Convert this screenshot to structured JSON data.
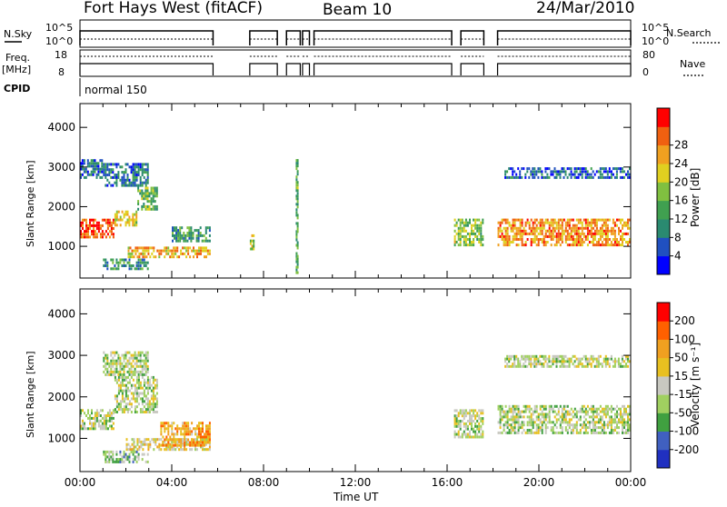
{
  "header": {
    "title": "Fort Hays West (fitACF)",
    "beam": "Beam 10",
    "date": "24/Mar/2010"
  },
  "summary_panels": {
    "nsky_label": "N.Sky",
    "nsky_top": "10^5",
    "nsky_bottom": "10^0",
    "nsearch_label": "N.Search",
    "nsearch_top": "10^5",
    "nsearch_bottom": "10^0",
    "freq_label_1": "Freq.",
    "freq_label_2": "[MHz]",
    "freq_top": "18",
    "freq_bottom": "8",
    "nave_label": "Nave",
    "nave_top": "80",
    "nave_bottom": "0",
    "cpid_label": "CPID",
    "cpid_value": "normal 150"
  },
  "colors": {
    "power_scale": [
      "#0000ff",
      "#2050c0",
      "#2a8a70",
      "#40a050",
      "#80c040",
      "#e0d020",
      "#f0a020",
      "#f06010",
      "#ff0000"
    ],
    "velocity_scale": [
      "#2030c0",
      "#4060c0",
      "#40a040",
      "#a0d060",
      "#c8c8c0",
      "#e8c020",
      "#f0a020",
      "#ff6000",
      "#ff0000"
    ]
  },
  "chart_data": [
    {
      "type": "heatmap",
      "name_ref": "power",
      "ylabel": "Slant Range [km]",
      "xlabel": "",
      "xlim": [
        0,
        24
      ],
      "ylim": [
        200,
        4600
      ],
      "yticks": [
        "1000",
        "2000",
        "3000",
        "4000"
      ],
      "colorbar_label": "Power [dB]",
      "colorbar_ticks": [
        "4",
        "8",
        "12",
        "16",
        "20",
        "24",
        "28"
      ],
      "colorbar_range": [
        0,
        32
      ],
      "regions": [
        {
          "t0": 0.0,
          "t1": 1.5,
          "r0": 1200,
          "r1": 1700,
          "level": 0.85
        },
        {
          "t0": 1.5,
          "t1": 2.5,
          "r0": 1500,
          "r1": 1900,
          "level": 0.6
        },
        {
          "t0": 2.5,
          "t1": 3.4,
          "r0": 1900,
          "r1": 2500,
          "level": 0.45
        },
        {
          "t0": 0.0,
          "t1": 1.0,
          "r0": 2700,
          "r1": 3200,
          "level": 0.2
        },
        {
          "t0": 1.0,
          "t1": 3.0,
          "r0": 2500,
          "r1": 3100,
          "level": 0.25
        },
        {
          "t0": 2.0,
          "t1": 5.7,
          "r0": 700,
          "r1": 1000,
          "level": 0.7
        },
        {
          "t0": 4.0,
          "t1": 5.7,
          "r0": 1100,
          "r1": 1500,
          "level": 0.35
        },
        {
          "t0": 1.0,
          "t1": 3.0,
          "r0": 400,
          "r1": 700,
          "level": 0.3
        },
        {
          "t0": 7.4,
          "t1": 7.6,
          "r0": 900,
          "r1": 1300,
          "level": 0.55
        },
        {
          "t0": 9.4,
          "t1": 9.5,
          "r0": 300,
          "r1": 3200,
          "level": 0.4
        },
        {
          "t0": 18.2,
          "t1": 24.0,
          "r0": 1000,
          "r1": 1700,
          "level": 0.75
        },
        {
          "t0": 18.5,
          "t1": 24.0,
          "r0": 2700,
          "r1": 3000,
          "level": 0.2
        },
        {
          "t0": 16.3,
          "t1": 17.6,
          "r0": 1000,
          "r1": 1700,
          "level": 0.5
        }
      ]
    },
    {
      "type": "heatmap",
      "name_ref": "velocity",
      "ylabel": "Slant Range [km]",
      "xlabel": "Time UT",
      "xlim": [
        0,
        24
      ],
      "ylim": [
        200,
        4600
      ],
      "xticks": [
        "00:00",
        "04:00",
        "08:00",
        "12:00",
        "16:00",
        "20:00",
        "00:00"
      ],
      "yticks": [
        "1000",
        "2000",
        "3000",
        "4000"
      ],
      "colorbar_label": "Velocity [m s⁻¹]",
      "colorbar_ticks": [
        "200",
        "100",
        "50",
        "15",
        "-15",
        "-50",
        "-100",
        "-200"
      ],
      "regions": [
        {
          "t0": 0.0,
          "t1": 1.5,
          "r0": 1200,
          "r1": 1700,
          "level": 0.45
        },
        {
          "t0": 1.5,
          "t1": 3.4,
          "r0": 1600,
          "r1": 2500,
          "level": 0.45
        },
        {
          "t0": 1.0,
          "t1": 3.0,
          "r0": 2500,
          "r1": 3100,
          "level": 0.45
        },
        {
          "t0": 2.0,
          "t1": 5.7,
          "r0": 700,
          "r1": 1000,
          "level": 0.55
        },
        {
          "t0": 3.5,
          "t1": 5.7,
          "r0": 800,
          "r1": 1400,
          "level": 0.7
        },
        {
          "t0": 1.0,
          "t1": 3.0,
          "r0": 400,
          "r1": 700,
          "level": 0.35
        },
        {
          "t0": 18.2,
          "t1": 24.0,
          "r0": 1100,
          "r1": 1800,
          "level": 0.45
        },
        {
          "t0": 18.5,
          "t1": 24.0,
          "r0": 2700,
          "r1": 3000,
          "level": 0.45
        },
        {
          "t0": 16.3,
          "t1": 17.6,
          "r0": 1000,
          "r1": 1700,
          "level": 0.45
        }
      ]
    }
  ]
}
